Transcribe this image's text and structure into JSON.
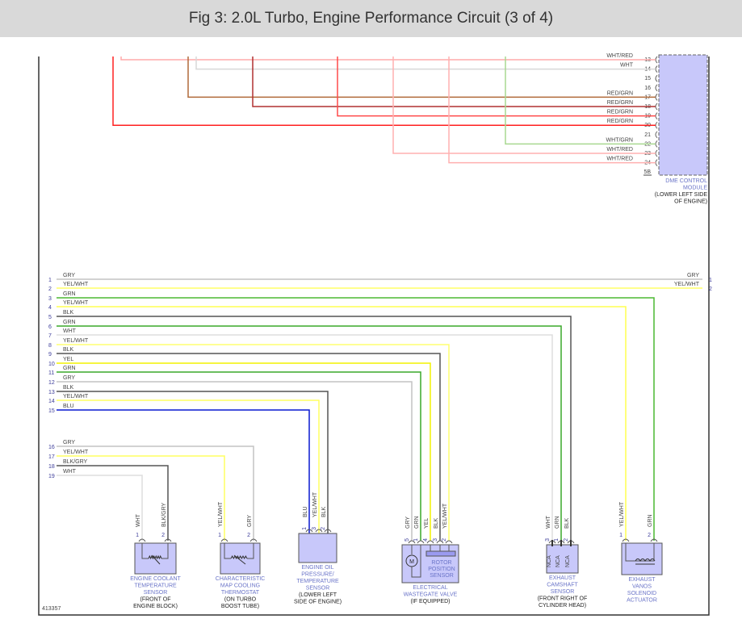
{
  "title": "Fig 3: 2.0L Turbo, Engine Performance Circuit (3 of 4)",
  "figure_id": "413357",
  "dme": {
    "name": [
      "DME CONTROL",
      "MODULE"
    ],
    "location": [
      "(LOWER LEFT SIDE",
      "OF ENGINE)"
    ],
    "connector": "5B"
  },
  "top_wires": [
    {
      "pin": "13",
      "label": "WHT/RED",
      "color": "#ffaaaa"
    },
    {
      "pin": "14",
      "label": "WHT",
      "color": "#d8d8d8"
    },
    {
      "pin": "15",
      "label": "",
      "color": ""
    },
    {
      "pin": "16",
      "label": "",
      "color": ""
    },
    {
      "pin": "17",
      "label": "RED/GRN",
      "color": "#b06a3a"
    },
    {
      "pin": "18",
      "label": "RED/GRN",
      "color": "#b03030"
    },
    {
      "pin": "19",
      "label": "RED/GRN",
      "color": "#ff4a4a"
    },
    {
      "pin": "20",
      "label": "RED/GRN",
      "color": "#ff2020"
    },
    {
      "pin": "21",
      "label": "",
      "color": ""
    },
    {
      "pin": "22",
      "label": "WHT/GRN",
      "color": "#a8d890"
    },
    {
      "pin": "23",
      "label": "WHT/RED",
      "color": "#ffb0b0"
    },
    {
      "pin": "24",
      "label": "WHT/RED",
      "color": "#ffb0b0"
    }
  ],
  "bundle_wires": [
    {
      "pin": "1",
      "label": "GRY",
      "color": "#c4c4c4",
      "right_label": "GRY",
      "right_pin": "1"
    },
    {
      "pin": "2",
      "label": "YEL/WHT",
      "color": "#ffff66",
      "right_label": "YEL/WHT",
      "right_pin": "2"
    },
    {
      "pin": "3",
      "label": "GRN",
      "color": "#4cb832"
    },
    {
      "pin": "4",
      "label": "YEL/WHT",
      "color": "#ffff50"
    },
    {
      "pin": "5",
      "label": "BLK",
      "color": "#555555"
    },
    {
      "pin": "6",
      "label": "GRN",
      "color": "#3aa82a"
    },
    {
      "pin": "7",
      "label": "WHT",
      "color": "#dddddd"
    },
    {
      "pin": "8",
      "label": "YEL/WHT",
      "color": "#ffff70"
    },
    {
      "pin": "9",
      "label": "BLK",
      "color": "#555555"
    },
    {
      "pin": "10",
      "label": "YEL",
      "color": "#f2f200"
    },
    {
      "pin": "11",
      "label": "GRN",
      "color": "#3aa82a"
    },
    {
      "pin": "12",
      "label": "GRY",
      "color": "#c4c4c4"
    },
    {
      "pin": "13",
      "label": "BLK",
      "color": "#555555"
    },
    {
      "pin": "14",
      "label": "YEL/WHT",
      "color": "#ffff60"
    },
    {
      "pin": "15",
      "label": "BLU",
      "color": "#0818d0"
    },
    {
      "pin": "16",
      "label": "GRY",
      "color": "#c4c4c4"
    },
    {
      "pin": "17",
      "label": "YEL/WHT",
      "color": "#ffff60"
    },
    {
      "pin": "18",
      "label": "BLK/GRY",
      "color": "#555555"
    },
    {
      "pin": "19",
      "label": "WHT",
      "color": "#dddddd"
    }
  ],
  "components": [
    {
      "id": "coolant",
      "name": [
        "ENGINE COOLANT",
        "TEMPERATURE",
        "SENSOR"
      ],
      "location": [
        "(FRONT OF",
        "ENGINE BLOCK)"
      ],
      "pins": [
        {
          "num": "1",
          "label": "WHT"
        },
        {
          "num": "2",
          "label": "BLK/GRY"
        }
      ],
      "icon": "thermistor"
    },
    {
      "id": "thermostat",
      "name": [
        "CHARACTERISTIC",
        "MAP COOLING",
        "THERMOSTAT"
      ],
      "location": [
        "(ON TURBO",
        "BOOST TUBE)"
      ],
      "pins": [
        {
          "num": "1",
          "label": "YEL/WHT"
        },
        {
          "num": "2",
          "label": "GRY"
        }
      ],
      "icon": "thermistor"
    },
    {
      "id": "oil",
      "name": [
        "ENGINE OIL",
        "PRESSURE/",
        "TEMPERATURE",
        "SENSOR"
      ],
      "location": [
        "(LOWER LEFT",
        "SIDE OF ENGINE)"
      ],
      "pins": [
        {
          "num": "1",
          "label": "BLU"
        },
        {
          "num": "3",
          "label": "YEL/WHT"
        },
        {
          "num": "2",
          "label": "BLK"
        }
      ],
      "icon": "none"
    },
    {
      "id": "wastegate",
      "name": [
        "ELECTRICAL",
        "WASTEGATE VALVE"
      ],
      "location": [
        "(IF EQUIPPED)"
      ],
      "inner_label": [
        "ROTOR",
        "POSITION",
        "SENSOR"
      ],
      "motor": "M",
      "pins": [
        {
          "num": "5",
          "label": "GRY"
        },
        {
          "num": "1",
          "label": "GRN"
        },
        {
          "num": "4",
          "label": "YEL"
        },
        {
          "num": "3",
          "label": "BLK"
        },
        {
          "num": "2",
          "label": "YEL/WHT"
        }
      ],
      "icon": "motor"
    },
    {
      "id": "camshaft",
      "name": [
        "EXHAUST",
        "CAMSHAFT",
        "SENSOR"
      ],
      "location": [
        "(FRONT RIGHT OF",
        "CYLINDER HEAD)"
      ],
      "pin_tag": "NCA",
      "pins": [
        {
          "num": "3",
          "label": "WHT"
        },
        {
          "num": "1",
          "label": "GRN"
        },
        {
          "num": "2",
          "label": "BLK"
        }
      ],
      "icon": "none"
    },
    {
      "id": "vanos",
      "name": [
        "EXHAUST",
        "VANOS",
        "SOLENOID",
        "ACTUATOR"
      ],
      "location": [],
      "pins": [
        {
          "num": "1",
          "label": "YEL/WHT"
        },
        {
          "num": "2",
          "label": "GRN"
        }
      ],
      "icon": "coil"
    }
  ],
  "colors": {
    "module_fill": "#c8c8fa",
    "component_name": "#6a74c8",
    "header_bg": "#d9d9d9"
  }
}
